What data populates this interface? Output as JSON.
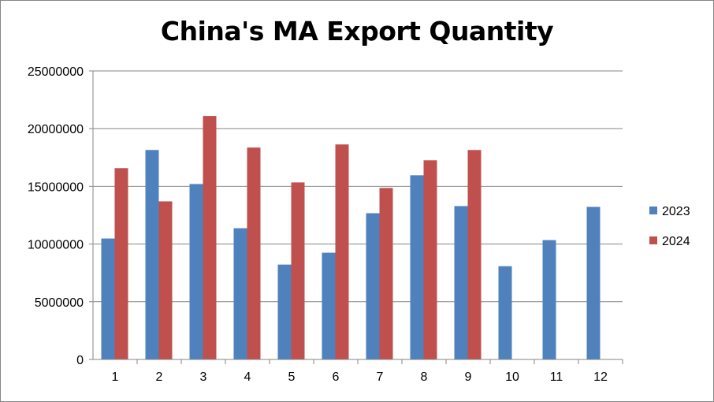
{
  "chart_data": {
    "type": "bar",
    "title": "China's MA Export Quantity",
    "xlabel": "",
    "ylabel": "",
    "categories": [
      "1",
      "2",
      "3",
      "4",
      "5",
      "6",
      "7",
      "8",
      "9",
      "10",
      "11",
      "12"
    ],
    "series": [
      {
        "name": "2023",
        "color": "#4F81BD",
        "values": [
          10480000,
          18150000,
          15200000,
          11370000,
          8220000,
          9250000,
          12670000,
          15960000,
          13290000,
          8080000,
          10340000,
          13220000
        ]
      },
      {
        "name": "2024",
        "color": "#C0504D",
        "values": [
          16580000,
          13700000,
          21100000,
          18360000,
          15340000,
          18630000,
          14860000,
          17260000,
          18150000,
          null,
          null,
          null
        ]
      }
    ],
    "ylim": [
      0,
      25000000
    ],
    "yticks": [
      "0",
      "5000000",
      "10000000",
      "15000000",
      "20000000",
      "25000000"
    ],
    "grid": true,
    "legend": "right"
  }
}
